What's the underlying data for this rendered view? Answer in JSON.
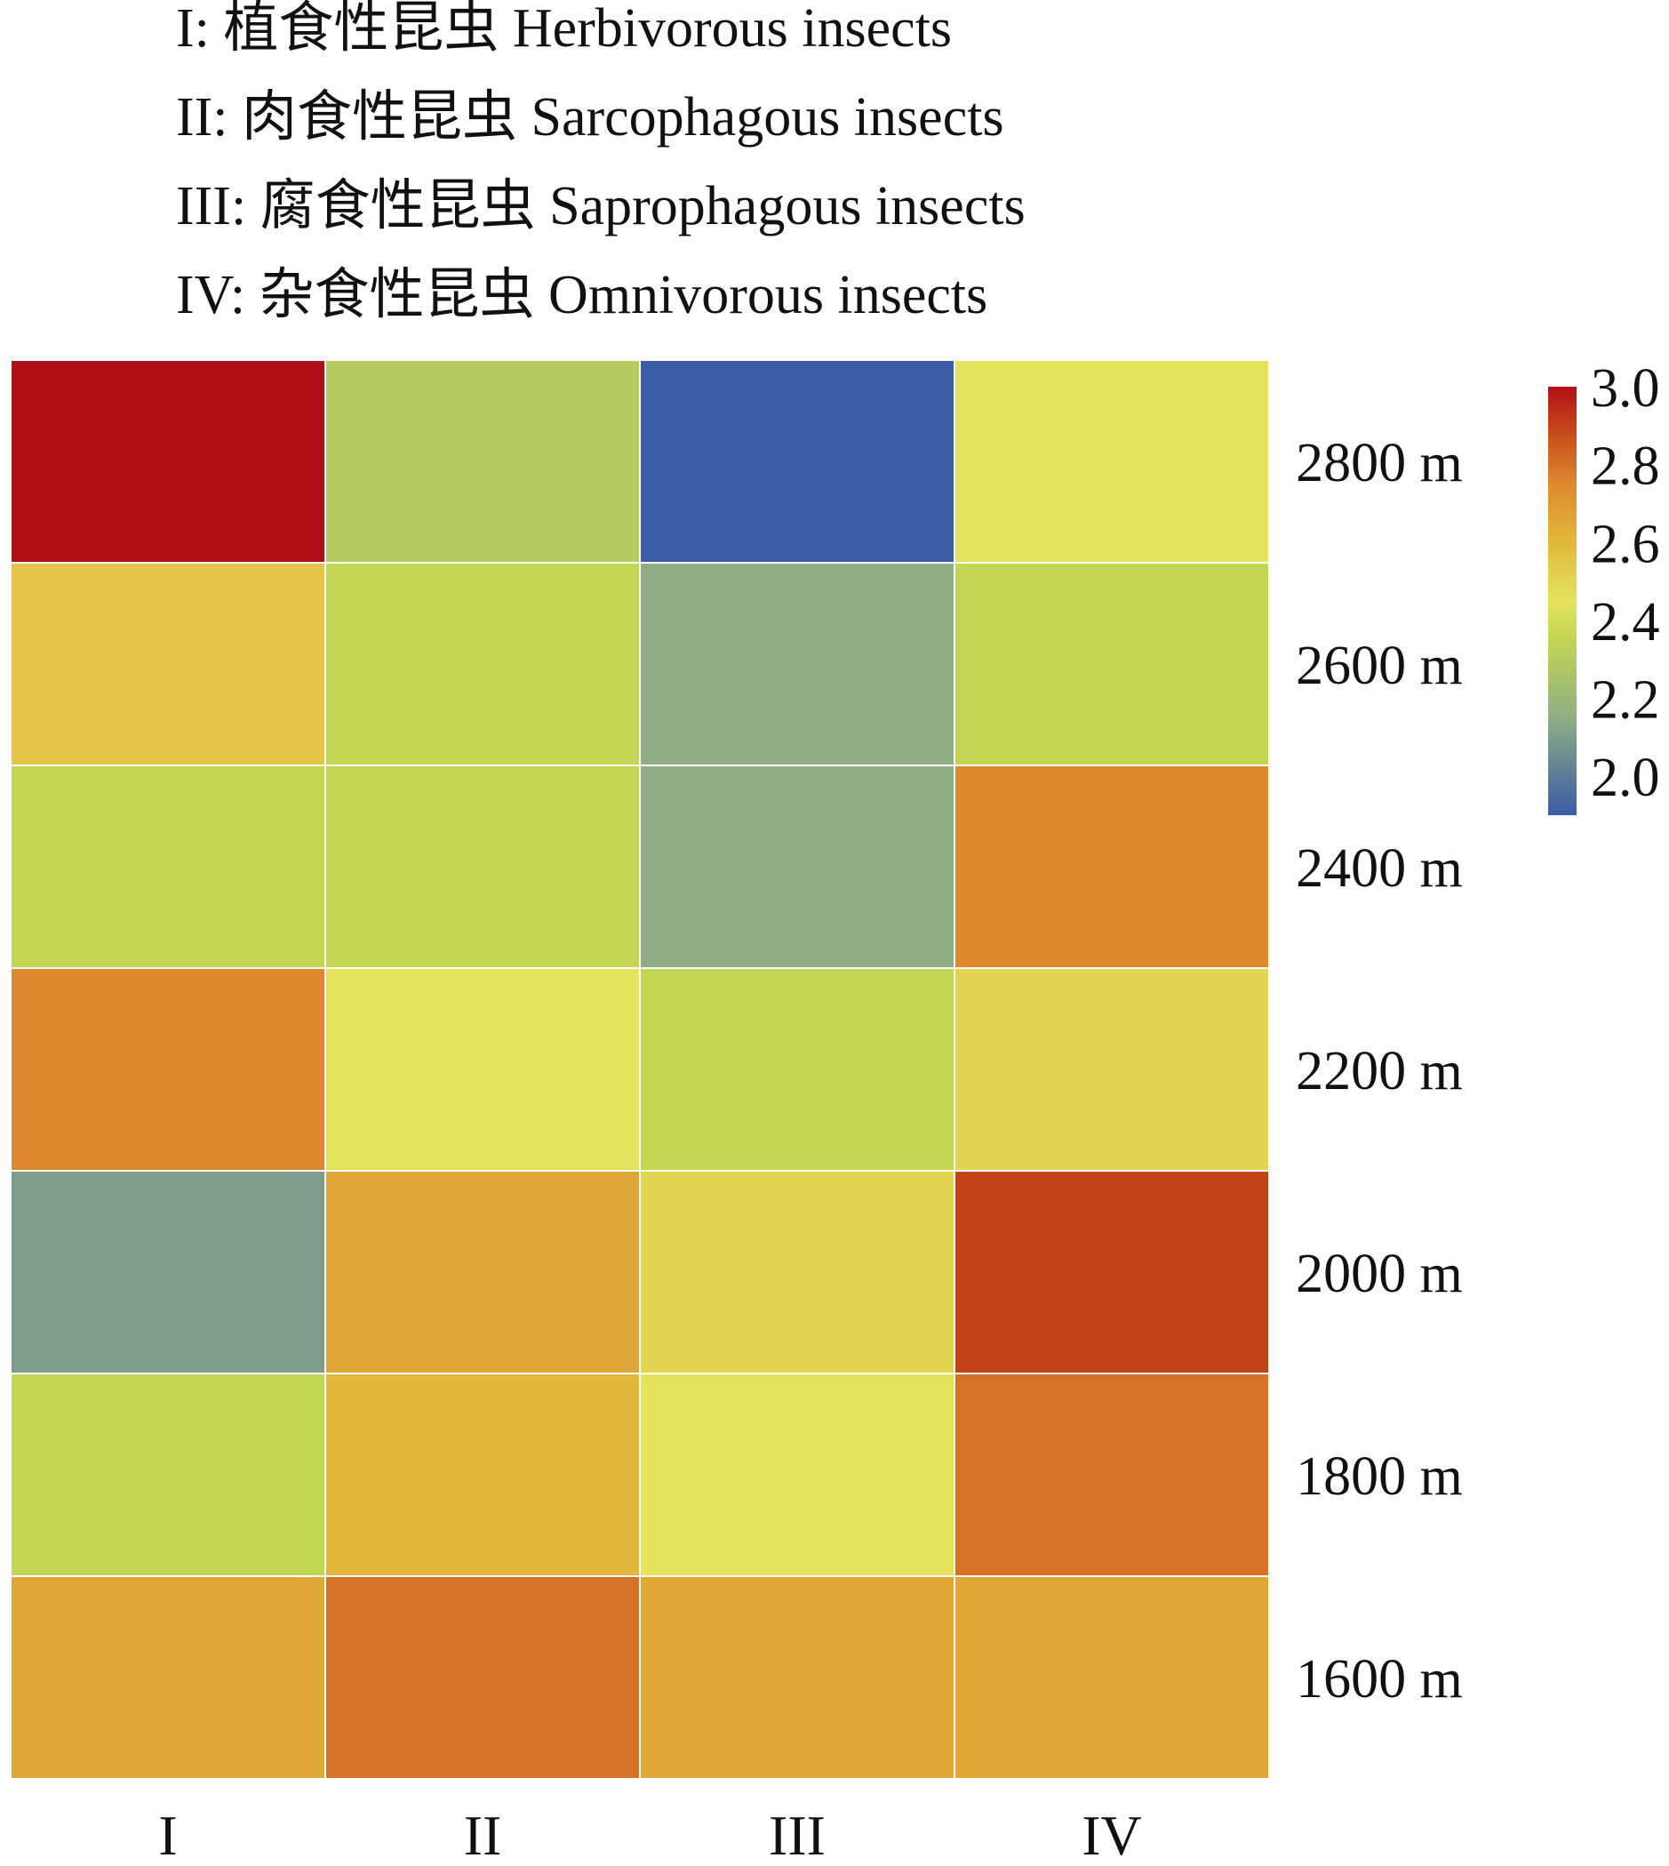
{
  "legend": [
    "I: 植食性昆虫 Herbivorous insects",
    "II: 肉食性昆虫 Sarcophagous insects",
    "III: 腐食性昆虫 Saprophagous insects",
    "IV: 杂食性昆虫 Omnivorous insects"
  ],
  "chart_data": {
    "type": "heatmap",
    "title": "",
    "columns": [
      "I",
      "II",
      "III",
      "IV"
    ],
    "rows": [
      "2800 m",
      "2600 m",
      "2400 m",
      "2200 m",
      "2000 m",
      "1800 m",
      "1600 m"
    ],
    "values": [
      [
        3.0,
        2.3,
        1.9,
        2.45
      ],
      [
        2.55,
        2.35,
        2.15,
        2.35
      ],
      [
        2.35,
        2.35,
        2.15,
        2.75
      ],
      [
        2.75,
        2.45,
        2.35,
        2.5
      ],
      [
        2.1,
        2.65,
        2.5,
        2.9
      ],
      [
        2.35,
        2.6,
        2.45,
        2.8
      ],
      [
        2.65,
        2.8,
        2.65,
        2.65
      ]
    ],
    "colorbar": {
      "min": 1.9,
      "max": 3.0,
      "ticks": [
        "3.0",
        "2.8",
        "2.6",
        "2.4",
        "2.2",
        "2.0"
      ],
      "tick_values": [
        3.0,
        2.8,
        2.6,
        2.4,
        2.2,
        2.0
      ],
      "colors": [
        "#3B5BA5",
        "#8FAE85",
        "#C3D653",
        "#E4E35E",
        "#E2B83C",
        "#DD8A2E",
        "#C4421A",
        "#B01018"
      ],
      "color_stops": [
        1.9,
        2.15,
        2.35,
        2.45,
        2.6,
        2.75,
        2.9,
        3.0
      ]
    },
    "legend_placement": "right"
  }
}
